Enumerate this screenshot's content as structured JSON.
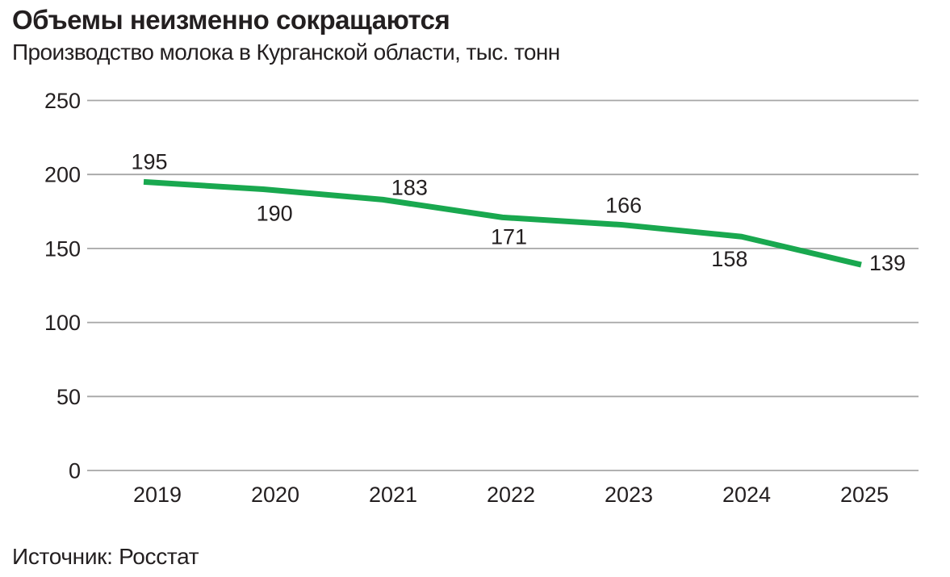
{
  "chart_data": {
    "type": "line",
    "title": "Объемы неизменно сокращаются",
    "subtitle": "Производство молока в Курганской области, тыс. тонн",
    "source": "Источник: Росстат",
    "categories": [
      "2019",
      "2020",
      "2021",
      "2022",
      "2023",
      "2024",
      "2025"
    ],
    "series": [
      {
        "name": "Производство молока, тыс. тонн",
        "values": [
          195,
          190,
          183,
          171,
          166,
          158,
          139
        ]
      }
    ],
    "value_label_positions": [
      "above",
      "below",
      "above",
      "below",
      "above",
      "below",
      "right"
    ],
    "ylim": [
      0,
      250
    ],
    "yticks": [
      0,
      50,
      100,
      150,
      200,
      250
    ],
    "grid": true,
    "legend": false,
    "line_color": "#19a84f",
    "grid_color": "#a6a6a6",
    "text_color": "#231f20"
  }
}
